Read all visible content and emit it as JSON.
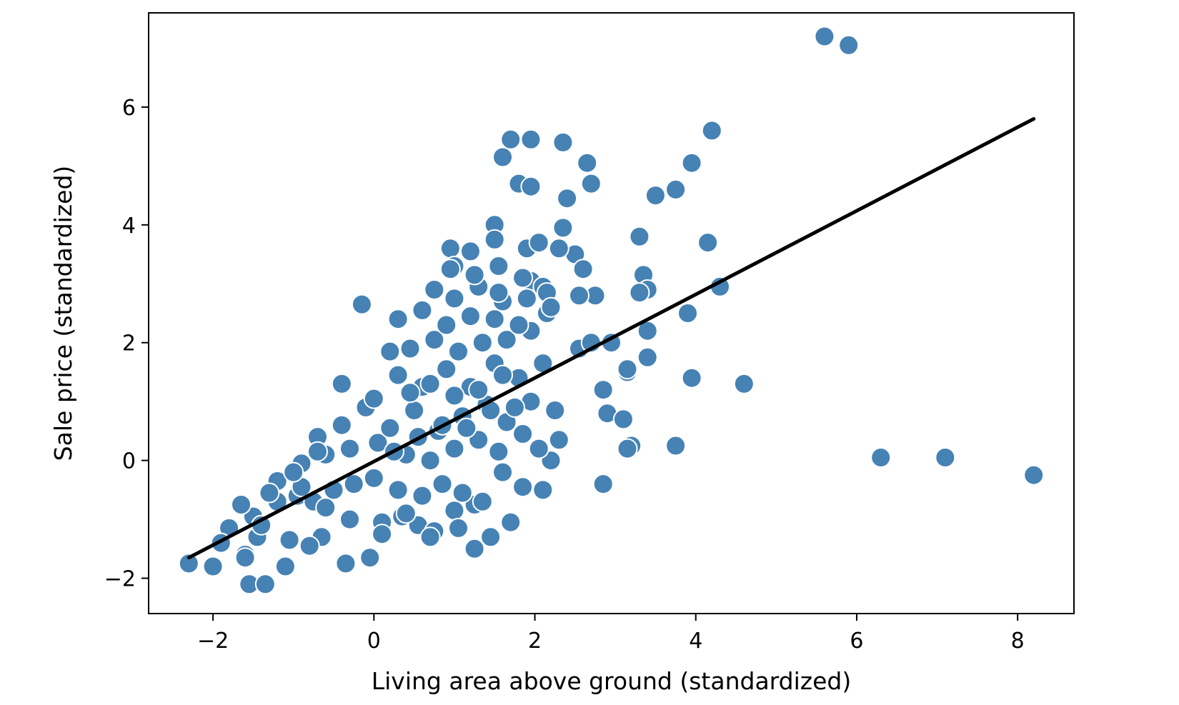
{
  "chart_data": {
    "type": "scatter",
    "title": "",
    "xlabel": "Living area above ground (standardized)",
    "ylabel": "Sale price (standardized)",
    "xlim": [
      -2.8,
      8.7
    ],
    "ylim": [
      -2.6,
      7.6
    ],
    "xticks": [
      -2,
      0,
      2,
      4,
      6,
      8
    ],
    "yticks": [
      -2,
      0,
      2,
      4,
      6
    ],
    "xtick_labels": [
      "−2",
      "0",
      "2",
      "4",
      "6",
      "8"
    ],
    "ytick_labels": [
      "−2",
      "0",
      "2",
      "4",
      "6"
    ],
    "grid": false,
    "colors": {
      "points": "#4682b4",
      "point_edge": "#ffffff",
      "line": "#000000"
    },
    "series": [
      {
        "kind": "points",
        "x": [
          5.6,
          5.9,
          4.2,
          3.95,
          3.75,
          3.5,
          4.15,
          3.3,
          3.35,
          3.4,
          3.3,
          4.3,
          3.9,
          3.4,
          3.15,
          2.85,
          2.9,
          3.1,
          2.75,
          2.55,
          2.55,
          2.7,
          3.95,
          4.6,
          3.4,
          3.2,
          2.95,
          3.15,
          3.15,
          3.75,
          2.85,
          6.3,
          7.1,
          8.2,
          1.25,
          -0.15,
          1.7,
          1.95,
          2.35,
          1.6,
          2.65,
          2.7,
          1.8,
          1.95,
          2.4,
          1.5,
          2.35,
          2.5,
          1.5,
          0.95,
          1.2,
          1.0,
          1.55,
          1.9,
          2.05,
          2.3,
          1.95,
          2.1,
          2.15,
          2.6,
          -2.3,
          -2.0,
          -1.55,
          -1.35,
          -0.35,
          -0.05,
          -1.6,
          -1.1,
          -1.45,
          -0.65,
          -0.3,
          0.1,
          0.35,
          0.55,
          0.75,
          1.0,
          1.25,
          1.45,
          1.7,
          -0.95,
          -0.75,
          -0.5,
          -0.25,
          0.0,
          0.3,
          0.6,
          0.85,
          1.1,
          1.35,
          1.6,
          1.85,
          2.1,
          -1.2,
          -0.9,
          -0.6,
          -0.3,
          0.05,
          0.4,
          0.7,
          1.0,
          1.3,
          1.55,
          1.85,
          2.2,
          -0.4,
          -0.1,
          0.2,
          0.5,
          0.8,
          1.1,
          1.4,
          1.65,
          1.95,
          2.25,
          -0.7,
          -0.4,
          0.0,
          0.3,
          0.6,
          0.9,
          1.2,
          1.5,
          1.8,
          2.1,
          0.2,
          0.45,
          0.75,
          1.05,
          1.35,
          1.65,
          1.95,
          0.3,
          0.6,
          0.9,
          1.2,
          1.5,
          1.8,
          2.15,
          0.75,
          1.0,
          1.3,
          1.6,
          1.9,
          0.95,
          1.25,
          1.55,
          1.85,
          2.2,
          -1.8,
          -1.5,
          -1.2,
          -0.9,
          -0.6,
          -1.65,
          -1.3,
          -1.0,
          -0.7,
          -1.4,
          -1.05,
          -0.8,
          -1.9,
          -1.6,
          0.1,
          0.4,
          0.7,
          1.05,
          0.25,
          0.55,
          0.85,
          1.15,
          1.45,
          1.75,
          2.05,
          2.3,
          0.45,
          0.7,
          1.0,
          1.3,
          1.6
        ],
        "y": [
          7.2,
          7.05,
          5.6,
          5.05,
          4.6,
          4.5,
          3.7,
          3.8,
          3.15,
          2.9,
          2.85,
          2.95,
          2.5,
          2.2,
          1.5,
          1.2,
          0.8,
          0.7,
          2.8,
          2.8,
          1.9,
          2.0,
          1.4,
          1.3,
          1.75,
          0.25,
          2.0,
          1.55,
          0.2,
          0.25,
          -0.4,
          0.05,
          0.05,
          -0.25,
          -1.5,
          2.65,
          5.45,
          5.45,
          5.4,
          5.15,
          5.05,
          4.7,
          4.7,
          4.65,
          4.45,
          4.0,
          3.95,
          3.5,
          3.75,
          3.6,
          3.55,
          3.3,
          3.3,
          3.6,
          3.7,
          3.6,
          3.05,
          2.95,
          2.85,
          3.25,
          -1.75,
          -1.8,
          -2.1,
          -2.1,
          -1.75,
          -1.65,
          -1.6,
          -1.8,
          -1.3,
          -1.3,
          -1.0,
          -1.05,
          -0.95,
          -1.1,
          -1.2,
          -0.85,
          -0.75,
          -1.3,
          -1.05,
          -0.6,
          -0.7,
          -0.5,
          -0.4,
          -0.3,
          -0.5,
          -0.6,
          -0.4,
          -0.55,
          -0.7,
          -0.2,
          -0.45,
          -0.5,
          -0.35,
          -0.05,
          0.1,
          0.2,
          0.3,
          0.1,
          0.0,
          0.2,
          0.35,
          0.15,
          0.45,
          0.0,
          0.6,
          0.9,
          0.55,
          0.85,
          0.5,
          0.75,
          0.95,
          0.65,
          1.0,
          0.85,
          0.4,
          1.3,
          1.05,
          1.45,
          1.25,
          1.55,
          1.25,
          1.65,
          1.4,
          1.65,
          1.85,
          1.9,
          2.05,
          1.85,
          2.0,
          2.05,
          2.2,
          2.4,
          2.55,
          2.3,
          2.45,
          2.4,
          2.3,
          2.5,
          2.9,
          2.75,
          2.95,
          2.7,
          2.75,
          3.25,
          3.15,
          2.85,
          3.1,
          2.6,
          -1.15,
          -0.95,
          -0.7,
          -0.45,
          -0.8,
          -0.75,
          -0.55,
          -0.2,
          0.15,
          -1.1,
          -1.35,
          -1.45,
          -1.4,
          -1.65,
          -1.25,
          -0.9,
          -1.3,
          -1.15,
          0.15,
          0.4,
          0.6,
          0.55,
          0.85,
          0.9,
          0.2,
          0.35,
          1.15,
          1.3,
          1.1,
          1.2,
          1.45
        ]
      },
      {
        "kind": "fit-line",
        "x": [
          -2.3,
          8.2
        ],
        "y": [
          -1.65,
          5.8
        ]
      }
    ]
  }
}
